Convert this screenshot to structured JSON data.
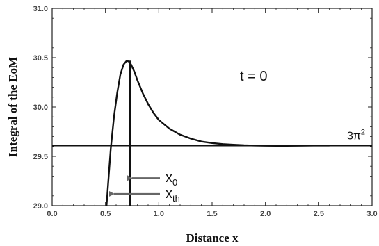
{
  "chart_data": {
    "type": "line",
    "title": "",
    "xlabel": "Distance x",
    "ylabel": "Integral of the EoM",
    "xlim": [
      0.0,
      3.0
    ],
    "ylim": [
      29.0,
      31.0
    ],
    "xticks": [
      "0.0",
      "0.5",
      "1.0",
      "1.5",
      "2.0",
      "2.5",
      "3.0"
    ],
    "yticks": [
      "29.0",
      "29.5",
      "30.0",
      "30.5",
      "31.0"
    ],
    "grid": false,
    "series": [
      {
        "name": "",
        "x": [
          0.51,
          0.53,
          0.55,
          0.58,
          0.61,
          0.64,
          0.67,
          0.7,
          0.72,
          0.74,
          0.77,
          0.8,
          0.85,
          0.9,
          0.95,
          1.0,
          1.1,
          1.2,
          1.3,
          1.4,
          1.5,
          1.6,
          1.7,
          1.8,
          1.9,
          2.0,
          2.1,
          2.2,
          2.3,
          2.45,
          2.6
        ],
        "y": [
          29.0,
          29.3,
          29.58,
          29.9,
          30.14,
          30.33,
          30.43,
          30.47,
          30.46,
          30.43,
          30.36,
          30.27,
          30.14,
          30.03,
          29.94,
          29.87,
          29.78,
          29.72,
          29.68,
          29.65,
          29.635,
          29.625,
          29.618,
          29.613,
          29.61,
          29.608,
          29.607,
          29.607,
          29.608,
          29.61,
          29.61
        ]
      }
    ],
    "hlines": [
      {
        "y": 29.61,
        "label": "3π²",
        "label_base": "3π",
        "label_exp": "2"
      }
    ],
    "vlines": [
      {
        "x": 0.73,
        "y_top": 30.47
      }
    ],
    "annotations": {
      "x0": {
        "text": "x",
        "sub": "0",
        "arrow_to_x": 0.73,
        "y": 29.28
      },
      "xth": {
        "text": "x",
        "sub": "th",
        "arrow_to_x": 0.56,
        "y": 29.12
      },
      "time_label": "t = 0"
    }
  }
}
